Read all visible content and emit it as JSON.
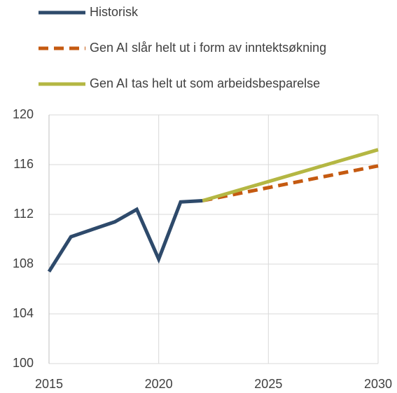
{
  "chart_data": {
    "type": "line",
    "xlim": [
      2015,
      2030
    ],
    "xticks": [
      2015,
      2020,
      2025,
      2030
    ],
    "ylim": [
      100,
      120
    ],
    "yticks": [
      100,
      104,
      108,
      112,
      116,
      120
    ],
    "grid": true,
    "series": [
      {
        "name": "Historisk",
        "color": "#2e4a6b",
        "style": "solid",
        "x": [
          2015,
          2016,
          2017,
          2018,
          2019,
          2020,
          2021,
          2022
        ],
        "values": [
          107.4,
          110.2,
          110.8,
          111.4,
          112.4,
          108.4,
          113.0,
          113.1
        ]
      },
      {
        "name": "Gen AI slår helt ut i form av inntektsøkning",
        "color": "#c55a11",
        "style": "dashed",
        "x": [
          2022,
          2030
        ],
        "values": [
          113.1,
          115.9
        ]
      },
      {
        "name": "Gen AI tas helt ut som arbeidsbesparelse",
        "color": "#b4b743",
        "style": "solid",
        "x": [
          2022,
          2030
        ],
        "values": [
          113.1,
          117.2
        ]
      }
    ]
  }
}
